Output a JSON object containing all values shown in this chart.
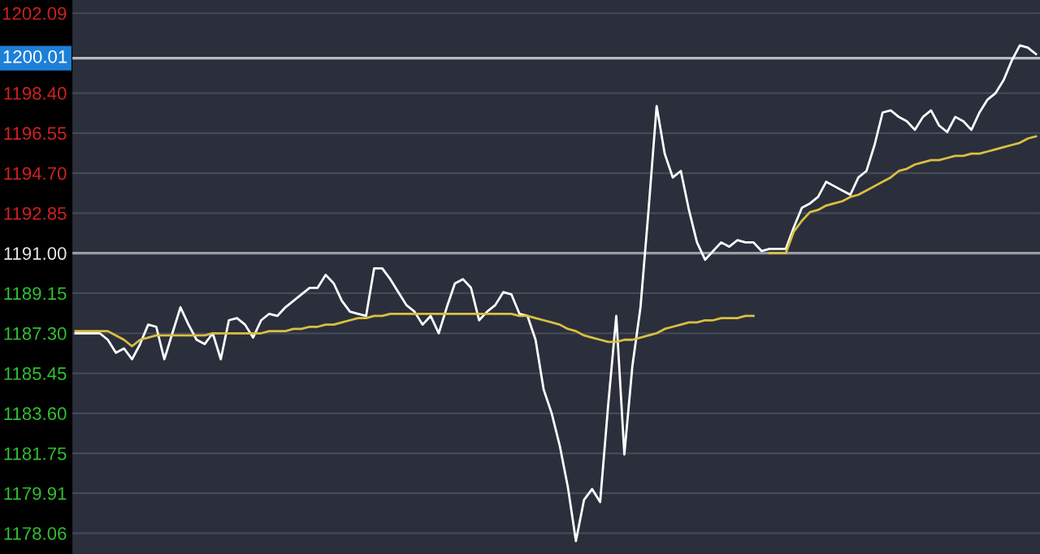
{
  "chart_data": {
    "type": "line",
    "categories": [
      null,
      null,
      null,
      null,
      null,
      null,
      null,
      null,
      null,
      null,
      null,
      null,
      null,
      null,
      null,
      null,
      null,
      null,
      null,
      null,
      null,
      null,
      null,
      null,
      null,
      null,
      null,
      null,
      null,
      null,
      null,
      null,
      null,
      null,
      null,
      null,
      null,
      null,
      null,
      null,
      null,
      null,
      null,
      null,
      null,
      null,
      null,
      null,
      null,
      null,
      null,
      null,
      null,
      null,
      null,
      null,
      null,
      null,
      null,
      null,
      null,
      null,
      null,
      null,
      null,
      null,
      null,
      null,
      null,
      null,
      null,
      null,
      null,
      null,
      null,
      null,
      null,
      null,
      null,
      null,
      null,
      null,
      null,
      null,
      null,
      null,
      null,
      null,
      null,
      null,
      null,
      null,
      null,
      null,
      null,
      null,
      null,
      null,
      null,
      null,
      null,
      null,
      null,
      null,
      null,
      null,
      null,
      null,
      null,
      null,
      null,
      null,
      null,
      null,
      null,
      null,
      null,
      null,
      null,
      null
    ],
    "series": [
      {
        "color": "#ffffff",
        "values": [
          1187.3,
          1187.3,
          1187.3,
          1187.3,
          1187.0,
          1186.4,
          1186.6,
          1186.1,
          1186.8,
          1187.7,
          1187.6,
          1186.1,
          1187.3,
          1188.5,
          1187.7,
          1187.0,
          1186.8,
          1187.3,
          1186.1,
          1187.9,
          1188.0,
          1187.7,
          1187.1,
          1187.9,
          1188.2,
          1188.1,
          1188.5,
          1188.8,
          1189.1,
          1189.4,
          1189.4,
          1190.0,
          1189.6,
          1188.8,
          1188.3,
          1188.2,
          1188.1,
          1190.3,
          1190.3,
          1189.8,
          1189.2,
          1188.6,
          1188.3,
          1187.7,
          1188.1,
          1187.3,
          1188.5,
          1189.6,
          1189.8,
          1189.4,
          1187.9,
          1188.3,
          1188.6,
          1189.2,
          1189.1,
          1188.2,
          1188.1,
          1187.0,
          1184.7,
          1183.6,
          1182.1,
          1180.2,
          1177.7,
          1179.6,
          1180.1,
          1179.5,
          1184.0,
          1188.1,
          1181.7,
          1185.8,
          1188.5,
          1193.0,
          1197.8,
          1195.6,
          1194.5,
          1194.8,
          1193.0,
          1191.5,
          1190.7,
          1191.1,
          1191.5,
          1191.3,
          1191.6,
          1191.5,
          1191.5,
          1191.1,
          1191.2,
          1191.2,
          1191.2,
          1192.2,
          1193.1,
          1193.3,
          1193.6,
          1194.3,
          1194.1,
          1193.9,
          1193.7,
          1194.5,
          1194.8,
          1196.0,
          1197.5,
          1197.6,
          1197.3,
          1197.1,
          1196.7,
          1197.3,
          1197.6,
          1196.9,
          1196.6,
          1197.3,
          1197.1,
          1196.7,
          1197.5,
          1198.1,
          1198.4,
          1199.0,
          1199.9,
          1200.6,
          1200.5,
          1200.2
        ]
      },
      {
        "color": "#d9c040",
        "values": [
          1187.4,
          1187.4,
          1187.4,
          1187.4,
          1187.4,
          1187.2,
          1187.0,
          1186.7,
          1187.0,
          1187.1,
          1187.2,
          1187.2,
          1187.2,
          1187.2,
          1187.2,
          1187.2,
          1187.2,
          1187.3,
          1187.3,
          1187.3,
          1187.3,
          1187.3,
          1187.3,
          1187.3,
          1187.4,
          1187.4,
          1187.4,
          1187.5,
          1187.5,
          1187.6,
          1187.6,
          1187.7,
          1187.7,
          1187.8,
          1187.9,
          1188.0,
          1188.0,
          1188.1,
          1188.1,
          1188.2,
          1188.2,
          1188.2,
          1188.2,
          1188.2,
          1188.2,
          1188.2,
          1188.2,
          1188.2,
          1188.2,
          1188.2,
          1188.2,
          1188.2,
          1188.2,
          1188.2,
          1188.2,
          1188.1,
          1188.1,
          1188.0,
          1187.9,
          1187.8,
          1187.7,
          1187.5,
          1187.4,
          1187.2,
          1187.1,
          1187.0,
          1186.9,
          1186.9,
          1187.0,
          1187.0,
          1187.1,
          1187.2,
          1187.3,
          1187.5,
          1187.6,
          1187.7,
          1187.8,
          1187.8,
          1187.9,
          1187.9,
          1188.0,
          1188.0,
          1188.0,
          1188.1,
          1188.1,
          null,
          1191.0,
          1191.0,
          1191.0,
          1192.0,
          1192.5,
          1192.9,
          1193.0,
          1193.2,
          1193.3,
          1193.4,
          1193.6,
          1193.7,
          1193.9,
          1194.1,
          1194.3,
          1194.5,
          1194.8,
          1194.9,
          1195.1,
          1195.2,
          1195.3,
          1195.3,
          1195.4,
          1195.5,
          1195.5,
          1195.6,
          1195.6,
          1195.7,
          1195.8,
          1195.9,
          1196.0,
          1196.1,
          1196.3,
          1196.4
        ]
      }
    ],
    "ylim": [
      1177.1,
      1202.7
    ],
    "yticks": [
      {
        "value": 1202.09,
        "label": "1202.09"
      },
      {
        "value": 1198.4,
        "label": "1198.40"
      },
      {
        "value": 1196.55,
        "label": "1196.55"
      },
      {
        "value": 1194.7,
        "label": "1194.70"
      },
      {
        "value": 1192.85,
        "label": "1192.85"
      },
      {
        "value": 1191.0,
        "label": "1191.00"
      },
      {
        "value": 1189.15,
        "label": "1189.15"
      },
      {
        "value": 1187.3,
        "label": "1187.30"
      },
      {
        "value": 1185.45,
        "label": "1185.45"
      },
      {
        "value": 1183.6,
        "label": "1183.60"
      },
      {
        "value": 1181.75,
        "label": "1181.75"
      },
      {
        "value": 1179.91,
        "label": "1179.91"
      },
      {
        "value": 1178.06,
        "label": "1178.06"
      }
    ],
    "ref_lines": [
      {
        "axis": "y",
        "value": 1191.0,
        "color": "#9a9ca4"
      },
      {
        "axis": "y",
        "value": 1200.01,
        "label": "1200.01",
        "color": "#b8bac0"
      }
    ],
    "grid": "y",
    "tick_labels": "y",
    "marker": "none",
    "line_style": "solid"
  }
}
